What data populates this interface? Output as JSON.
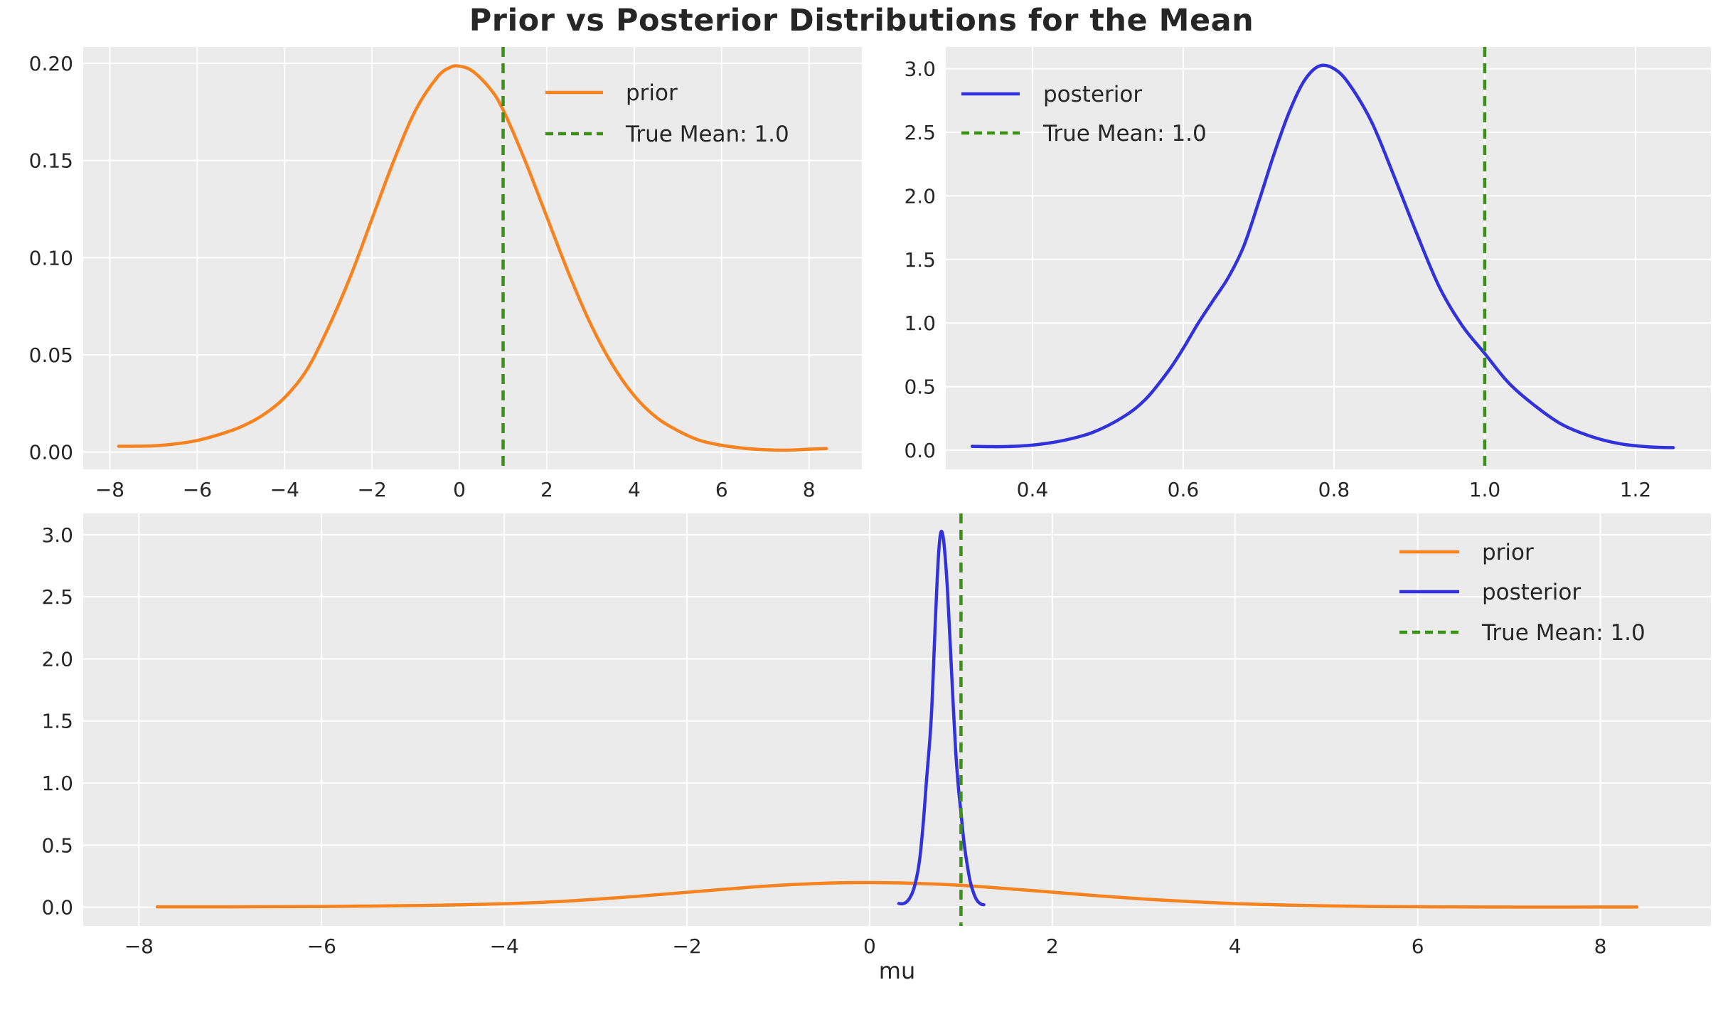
{
  "title": "Prior vs Posterior Distributions for the Mean",
  "xlabel": "mu",
  "colors": {
    "figure_bg": "#ffffff",
    "plot_bg": "#ebebeb",
    "grid": "#ffffff",
    "text": "#262626",
    "prior": "#f8821e",
    "posterior": "#3232dc",
    "true_mean": "#3a9116"
  },
  "chart_data": {
    "type": "line",
    "title": "Prior vs Posterior Distributions for the Mean",
    "xlabel": "mu",
    "grid": true,
    "series": {
      "prior": {
        "label": "prior",
        "color": "#f8821e",
        "style": "solid",
        "x": [
          -7.8,
          -7.5,
          -7.0,
          -6.5,
          -6.0,
          -5.5,
          -5.0,
          -4.5,
          -4.0,
          -3.5,
          -3.0,
          -2.5,
          -2.0,
          -1.5,
          -1.0,
          -0.5,
          -0.2,
          0.0,
          0.3,
          0.7,
          1.0,
          1.5,
          2.0,
          2.5,
          3.0,
          3.5,
          4.0,
          4.5,
          5.0,
          5.5,
          6.0,
          6.5,
          7.0,
          7.5,
          8.0,
          8.4
        ],
        "y": [
          0.003,
          0.003,
          0.0032,
          0.0042,
          0.006,
          0.009,
          0.013,
          0.019,
          0.028,
          0.042,
          0.064,
          0.09,
          0.12,
          0.15,
          0.176,
          0.193,
          0.198,
          0.1985,
          0.196,
          0.187,
          0.176,
          0.15,
          0.121,
          0.092,
          0.066,
          0.045,
          0.029,
          0.018,
          0.011,
          0.006,
          0.0035,
          0.002,
          0.0012,
          0.001,
          0.0015,
          0.0018
        ]
      },
      "posterior": {
        "label": "posterior",
        "color": "#3232dc",
        "style": "solid",
        "x": [
          0.32,
          0.36,
          0.4,
          0.44,
          0.48,
          0.52,
          0.55,
          0.58,
          0.6,
          0.62,
          0.64,
          0.66,
          0.68,
          0.7,
          0.72,
          0.74,
          0.76,
          0.78,
          0.8,
          0.82,
          0.85,
          0.88,
          0.91,
          0.94,
          0.97,
          1.0,
          1.03,
          1.06,
          1.1,
          1.14,
          1.18,
          1.22,
          1.25
        ],
        "y": [
          0.03,
          0.028,
          0.04,
          0.075,
          0.14,
          0.26,
          0.4,
          0.62,
          0.8,
          1.0,
          1.18,
          1.36,
          1.6,
          1.95,
          2.32,
          2.65,
          2.9,
          3.02,
          3.0,
          2.88,
          2.58,
          2.15,
          1.7,
          1.28,
          0.98,
          0.76,
          0.54,
          0.38,
          0.21,
          0.11,
          0.05,
          0.025,
          0.02
        ]
      },
      "true_mean": {
        "label": "True Mean: 1.0",
        "color": "#3a9116",
        "style": "dashed",
        "value": 1.0
      }
    },
    "subplots": [
      {
        "id": "prior-subplot",
        "series": [
          "prior"
        ],
        "vline": 1.0,
        "xlim": [
          -8.61,
          9.21
        ],
        "ylim": [
          -0.0089,
          0.2084
        ],
        "xtick_values": [
          -8,
          -6,
          -4,
          -2,
          0,
          2,
          4,
          6,
          8
        ],
        "xtick_labels": [
          "−8",
          "−6",
          "−4",
          "−2",
          "0",
          "2",
          "4",
          "6",
          "8"
        ],
        "ytick_values": [
          0.0,
          0.05,
          0.1,
          0.15,
          0.2
        ],
        "ytick_labels": [
          "0.00",
          "0.05",
          "0.10",
          "0.15",
          "0.20"
        ],
        "legend": [
          "prior",
          "true_mean"
        ],
        "legend_pos": "upper right"
      },
      {
        "id": "posterior-subplot",
        "series": [
          "posterior"
        ],
        "vline": 1.0,
        "xlim": [
          0.285,
          1.3
        ],
        "ylim": [
          -0.151,
          3.171
        ],
        "xtick_values": [
          0.4,
          0.6,
          0.8,
          1.0,
          1.2
        ],
        "xtick_labels": [
          "0.4",
          "0.6",
          "0.8",
          "1.0",
          "1.2"
        ],
        "ytick_values": [
          0.0,
          0.5,
          1.0,
          1.5,
          2.0,
          2.5,
          3.0
        ],
        "ytick_labels": [
          "0.0",
          "0.5",
          "1.0",
          "1.5",
          "2.0",
          "2.5",
          "3.0"
        ],
        "legend": [
          "posterior",
          "true_mean"
        ],
        "legend_pos": "upper left"
      },
      {
        "id": "combined-subplot",
        "series": [
          "prior",
          "posterior"
        ],
        "vline": 1.0,
        "xlim": [
          -8.61,
          9.21
        ],
        "ylim": [
          -0.151,
          3.171
        ],
        "xtick_values": [
          -8,
          -6,
          -4,
          -2,
          0,
          2,
          4,
          6,
          8
        ],
        "xtick_labels": [
          "−8",
          "−6",
          "−4",
          "−2",
          "0",
          "2",
          "4",
          "6",
          "8"
        ],
        "ytick_values": [
          0.0,
          0.5,
          1.0,
          1.5,
          2.0,
          2.5,
          3.0
        ],
        "ytick_labels": [
          "0.0",
          "0.5",
          "1.0",
          "1.5",
          "2.0",
          "2.5",
          "3.0"
        ],
        "legend": [
          "prior",
          "posterior",
          "true_mean"
        ],
        "legend_pos": "upper right",
        "xlabel": "mu"
      }
    ]
  }
}
